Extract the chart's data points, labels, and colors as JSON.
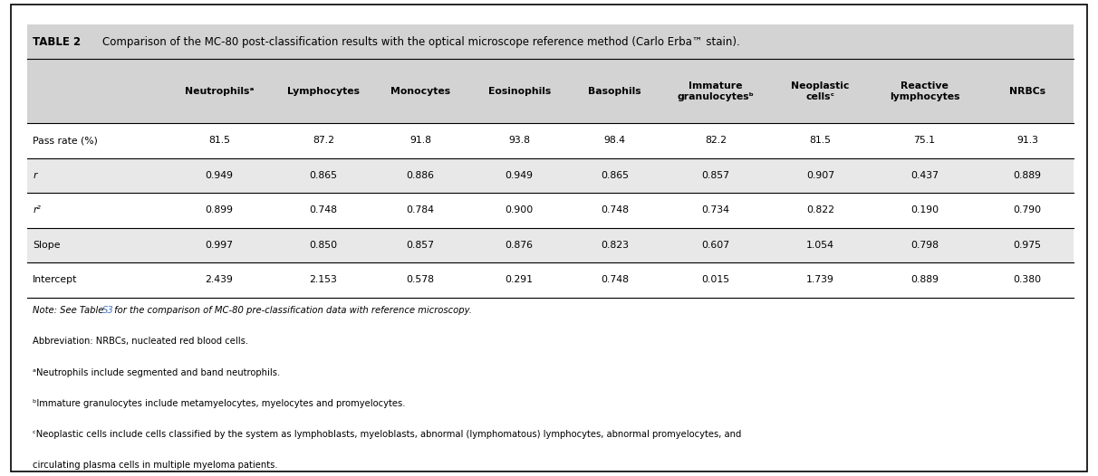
{
  "title_prefix": "TABLE 2",
  "title_text": "Comparison of the MC-80 post-classification results with the optical microscope reference method (Carlo Erba™ stain).",
  "col_headers": [
    "",
    "Neutrophilsᵃ",
    "Lymphocytes",
    "Monocytes",
    "Eosinophils",
    "Basophils",
    "Immature\ngranulocytesᵇ",
    "Neoplastic\ncellsᶜ",
    "Reactive\nlymphocytes",
    "NRBCs"
  ],
  "row_labels": [
    "Pass rate (%)",
    "r",
    "r²",
    "Slope",
    "Intercept"
  ],
  "row_label_italic": [
    false,
    true,
    true,
    false,
    false
  ],
  "table_data": [
    [
      "81.5",
      "87.2",
      "91.8",
      "93.8",
      "98.4",
      "82.2",
      "81.5",
      "75.1",
      "91.3"
    ],
    [
      "0.949",
      "0.865",
      "0.886",
      "0.949",
      "0.865",
      "0.857",
      "0.907",
      "0.437",
      "0.889"
    ],
    [
      "0.899",
      "0.748",
      "0.784",
      "0.900",
      "0.748",
      "0.734",
      "0.822",
      "0.190",
      "0.790"
    ],
    [
      "0.997",
      "0.850",
      "0.857",
      "0.876",
      "0.823",
      "0.607",
      "1.054",
      "0.798",
      "0.975"
    ],
    [
      "2.439",
      "2.153",
      "0.578",
      "0.291",
      "0.748",
      "0.015",
      "1.739",
      "0.889",
      "0.380"
    ]
  ],
  "shaded_rows": [
    1,
    3
  ],
  "header_bg": "#d3d3d3",
  "shaded_bg": "#e8e8e8",
  "white_bg": "#ffffff",
  "outer_bg": "#ffffff",
  "border_color": "#000000",
  "text_color": "#000000",
  "link_color": "#4472C4",
  "note_line1_pre": "Note: See Table ",
  "note_line1_link": "S3",
  "note_line1_post": " for the comparison of MC-80 pre-classification data with reference microscopy.",
  "note_lines": [
    "Abbreviation: NRBCs, nucleated red blood cells.",
    "ᵃNeutrophils include segmented and band neutrophils.",
    "ᵇImmature granulocytes include metamyelocytes, myelocytes and promyelocytes.",
    "ᶜNeoplastic cells include cells classified by the system as lymphoblasts, myeloblasts, abnormal (lymphomatous) lymphocytes, abnormal promyelocytes, and",
    "circulating plasma cells in multiple myeloma patients."
  ],
  "figsize": [
    12.12,
    5.26
  ],
  "dpi": 100
}
